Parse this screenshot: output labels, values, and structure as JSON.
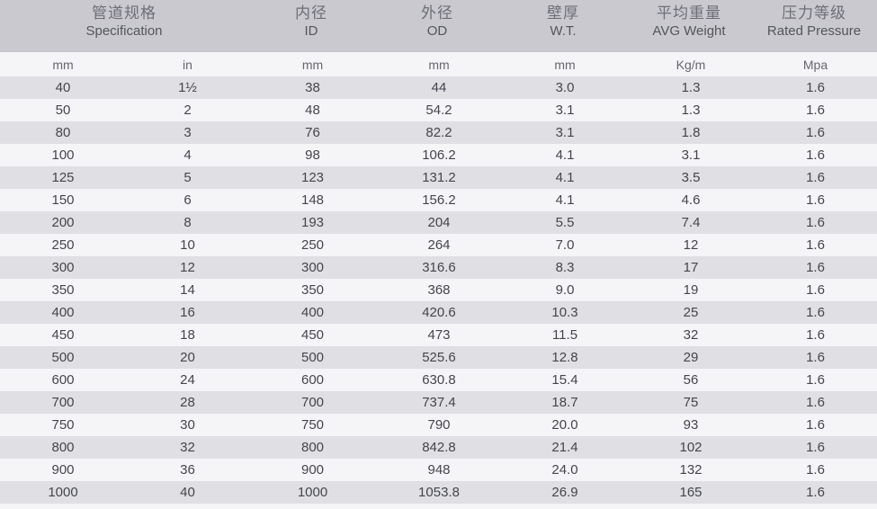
{
  "header": {
    "specification": {
      "zh": "管道规格",
      "en": "Specification"
    },
    "id": {
      "zh": "内径",
      "en": "ID"
    },
    "od": {
      "zh": "外径",
      "en": "OD"
    },
    "wt": {
      "zh": "壁厚",
      "en": "W.T."
    },
    "weight": {
      "zh": "平均重量",
      "en": "AVG Weight"
    },
    "pressure": {
      "zh": "压力等级",
      "en": "Rated Pressure"
    }
  },
  "units": [
    "mm",
    "in",
    "mm",
    "mm",
    "mm",
    "Kg/m",
    "Mpa"
  ],
  "rows": [
    [
      "40",
      "1½",
      "38",
      "44",
      "3.0",
      "1.3",
      "1.6"
    ],
    [
      "50",
      "2",
      "48",
      "54.2",
      "3.1",
      "1.3",
      "1.6"
    ],
    [
      "80",
      "3",
      "76",
      "82.2",
      "3.1",
      "1.8",
      "1.6"
    ],
    [
      "100",
      "4",
      "98",
      "106.2",
      "4.1",
      "3.1",
      "1.6"
    ],
    [
      "125",
      "5",
      "123",
      "131.2",
      "4.1",
      "3.5",
      "1.6"
    ],
    [
      "150",
      "6",
      "148",
      "156.2",
      "4.1",
      "4.6",
      "1.6"
    ],
    [
      "200",
      "8",
      "193",
      "204",
      "5.5",
      "7.4",
      "1.6"
    ],
    [
      "250",
      "10",
      "250",
      "264",
      "7.0",
      "12",
      "1.6"
    ],
    [
      "300",
      "12",
      "300",
      "316.6",
      "8.3",
      "17",
      "1.6"
    ],
    [
      "350",
      "14",
      "350",
      "368",
      "9.0",
      "19",
      "1.6"
    ],
    [
      "400",
      "16",
      "400",
      "420.6",
      "10.3",
      "25",
      "1.6"
    ],
    [
      "450",
      "18",
      "450",
      "473",
      "11.5",
      "32",
      "1.6"
    ],
    [
      "500",
      "20",
      "500",
      "525.6",
      "12.8",
      "29",
      "1.6"
    ],
    [
      "600",
      "24",
      "600",
      "630.8",
      "15.4",
      "56",
      "1.6"
    ],
    [
      "700",
      "28",
      "700",
      "737.4",
      "18.7",
      "75",
      "1.6"
    ],
    [
      "750",
      "30",
      "750",
      "790",
      "20.0",
      "93",
      "1.6"
    ],
    [
      "800",
      "32",
      "800",
      "842.8",
      "21.4",
      "102",
      "1.6"
    ],
    [
      "900",
      "36",
      "900",
      "948",
      "24.0",
      "132",
      "1.6"
    ],
    [
      "1000",
      "40",
      "1000",
      "1053.8",
      "26.9",
      "165",
      "1.6"
    ]
  ]
}
